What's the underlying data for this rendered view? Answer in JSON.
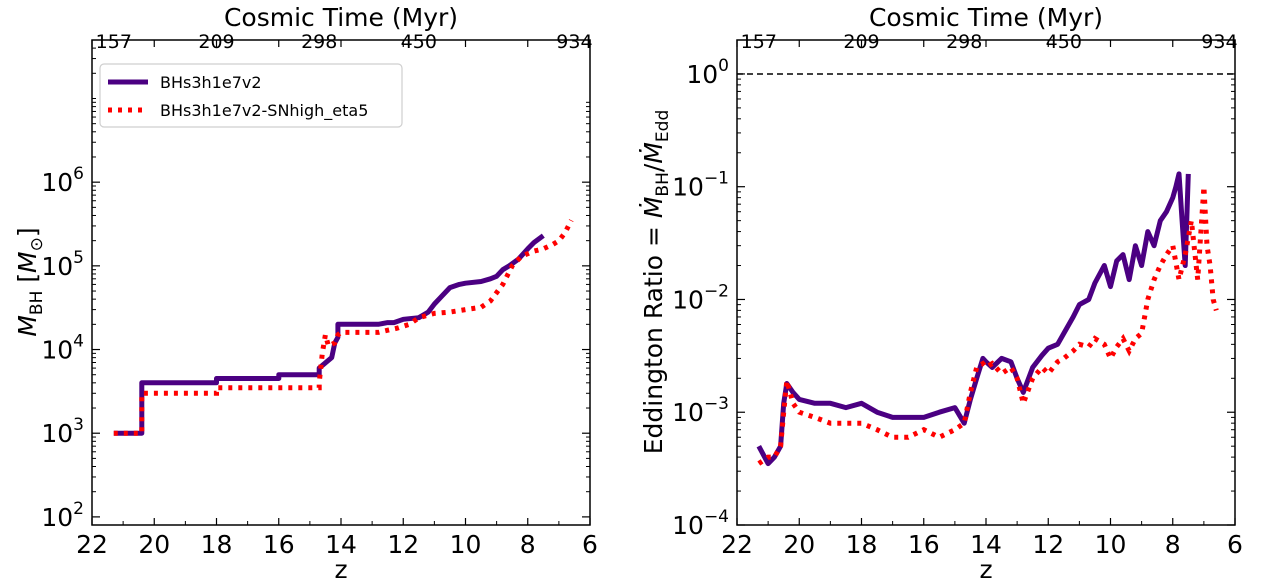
{
  "colors": {
    "series1": "#4b0082",
    "series2": "#ff0000",
    "eddington_line": "#000000"
  },
  "chart_data": [
    {
      "type": "line",
      "title": "",
      "top_axis_label": "Cosmic Time (Myr)",
      "top_tick_labels": [
        "157",
        "209",
        "298",
        "450",
        "934"
      ],
      "xlabel": "z",
      "ylabel": "M_BH [M_⊙]",
      "xlim": [
        22,
        6
      ],
      "ylim": [
        80,
        50000000
      ],
      "yscale": "log",
      "x_tick_labels": [
        "22",
        "20",
        "18",
        "16",
        "14",
        "12",
        "10",
        "8",
        "6"
      ],
      "y_tick_labels": [
        "10^2",
        "10^3",
        "10^4",
        "10^5",
        "10^6"
      ],
      "legend": {
        "placement": "top-left",
        "entries": [
          "BHs3h1e7v2",
          "BHs3h1e7v2-SNhigh_eta5"
        ]
      },
      "series": [
        {
          "name": "BHs3h1e7v2",
          "x": [
            21.3,
            20.4,
            20.4,
            18.0,
            18.0,
            16.0,
            16.0,
            14.7,
            14.7,
            14.3,
            14.2,
            14.1,
            14.1,
            12.8,
            12.5,
            12.3,
            12.0,
            11.5,
            11.2,
            11.0,
            10.8,
            10.5,
            10.2,
            10.0,
            9.5,
            9.2,
            9.0,
            8.8,
            8.6,
            8.3,
            8.0,
            7.8,
            7.5
          ],
          "values": [
            1000,
            1000,
            4000,
            4000,
            4500,
            4500,
            5000,
            5000,
            6000,
            8000,
            12000,
            14000,
            20000,
            20000,
            21000,
            21000,
            23000,
            24000,
            28000,
            35000,
            42000,
            55000,
            60000,
            62000,
            65000,
            70000,
            75000,
            90000,
            100000,
            120000,
            160000,
            190000,
            230000
          ]
        },
        {
          "name": "BHs3h1e7v2-SNhigh_eta5",
          "x": [
            21.3,
            20.4,
            20.4,
            18.0,
            18.0,
            14.7,
            14.7,
            14.6,
            14.5,
            14.4,
            14.2,
            14.1,
            14.0,
            12.8,
            12.5,
            12.2,
            12.0,
            11.8,
            11.5,
            11.0,
            10.5,
            10.0,
            9.5,
            9.2,
            8.8,
            8.5,
            8.2,
            7.8,
            7.5,
            7.2,
            7.0,
            6.8,
            6.6
          ],
          "values": [
            1000,
            1000,
            3000,
            3000,
            3500,
            3500,
            4000,
            9000,
            15000,
            11000,
            12000,
            15000,
            16000,
            16000,
            17000,
            18000,
            19000,
            20000,
            24000,
            27000,
            28000,
            30000,
            32000,
            38000,
            60000,
            100000,
            130000,
            150000,
            160000,
            180000,
            200000,
            250000,
            350000
          ]
        }
      ]
    },
    {
      "type": "line",
      "title": "",
      "top_axis_label": "Cosmic Time (Myr)",
      "top_tick_labels": [
        "157",
        "209",
        "298",
        "450",
        "934"
      ],
      "xlabel": "z",
      "ylabel": "Eddington Ratio = Ṁ_BH / Ṁ_Edd",
      "xlim": [
        22,
        6
      ],
      "ylim": [
        0.0001,
        2
      ],
      "yscale": "log",
      "x_tick_labels": [
        "22",
        "20",
        "18",
        "16",
        "14",
        "12",
        "10",
        "8",
        "6"
      ],
      "y_tick_labels": [
        "10^-4",
        "10^-3",
        "10^-2",
        "10^-1",
        "10^0"
      ],
      "reference_line": {
        "y": 1,
        "style": "dashed"
      },
      "series": [
        {
          "name": "BHs3h1e7v2",
          "x": [
            21.3,
            21.0,
            20.8,
            20.6,
            20.5,
            20.4,
            20.2,
            20.0,
            19.5,
            19.0,
            18.5,
            18.0,
            17.5,
            17.0,
            16.5,
            16.0,
            15.5,
            15.0,
            14.7,
            14.5,
            14.3,
            14.1,
            14.0,
            13.8,
            13.5,
            13.2,
            13.0,
            12.8,
            12.5,
            12.2,
            12.0,
            11.7,
            11.5,
            11.2,
            11.0,
            10.7,
            10.5,
            10.2,
            10.0,
            9.8,
            9.6,
            9.4,
            9.2,
            9.0,
            8.8,
            8.6,
            8.4,
            8.2,
            8.0,
            7.9,
            7.8,
            7.7,
            7.6,
            7.5
          ],
          "values": [
            0.0005,
            0.00035,
            0.0004,
            0.0005,
            0.0012,
            0.0018,
            0.0015,
            0.0013,
            0.0012,
            0.0012,
            0.0011,
            0.0012,
            0.001,
            0.0009,
            0.0009,
            0.0009,
            0.001,
            0.0011,
            0.0008,
            0.0013,
            0.002,
            0.003,
            0.0028,
            0.0025,
            0.003,
            0.0028,
            0.002,
            0.0015,
            0.0025,
            0.0032,
            0.0037,
            0.004,
            0.005,
            0.007,
            0.009,
            0.01,
            0.014,
            0.02,
            0.013,
            0.022,
            0.025,
            0.015,
            0.03,
            0.02,
            0.04,
            0.03,
            0.05,
            0.06,
            0.08,
            0.1,
            0.13,
            0.05,
            0.02,
            0.13
          ]
        },
        {
          "name": "BHs3h1e7v2-SNhigh_eta5",
          "x": [
            21.3,
            21.0,
            20.8,
            20.6,
            20.5,
            20.4,
            20.2,
            20.0,
            19.5,
            19.0,
            18.5,
            18.0,
            17.5,
            17.0,
            16.5,
            16.0,
            15.5,
            15.0,
            14.7,
            14.5,
            14.3,
            14.1,
            14.0,
            13.8,
            13.5,
            13.2,
            13.0,
            12.8,
            12.5,
            12.2,
            12.0,
            11.7,
            11.5,
            11.2,
            11.0,
            10.7,
            10.5,
            10.2,
            10.0,
            9.8,
            9.6,
            9.4,
            9.2,
            9.0,
            8.8,
            8.6,
            8.4,
            8.2,
            8.0,
            7.8,
            7.6,
            7.4,
            7.2,
            7.0,
            6.9,
            6.8,
            6.7,
            6.6
          ],
          "values": [
            0.00035,
            0.0004,
            0.0004,
            0.0005,
            0.001,
            0.0019,
            0.0012,
            0.001,
            0.0009,
            0.0008,
            0.0008,
            0.0008,
            0.0007,
            0.0006,
            0.0006,
            0.0007,
            0.0006,
            0.0007,
            0.0008,
            0.0015,
            0.0025,
            0.0027,
            0.0025,
            0.0027,
            0.0022,
            0.0025,
            0.002,
            0.0012,
            0.002,
            0.0025,
            0.0022,
            0.0028,
            0.003,
            0.0035,
            0.004,
            0.0038,
            0.0045,
            0.004,
            0.003,
            0.0038,
            0.0045,
            0.0035,
            0.0045,
            0.005,
            0.01,
            0.015,
            0.02,
            0.025,
            0.03,
            0.015,
            0.025,
            0.05,
            0.015,
            0.1,
            0.03,
            0.02,
            0.01,
            0.008
          ]
        }
      ]
    }
  ]
}
